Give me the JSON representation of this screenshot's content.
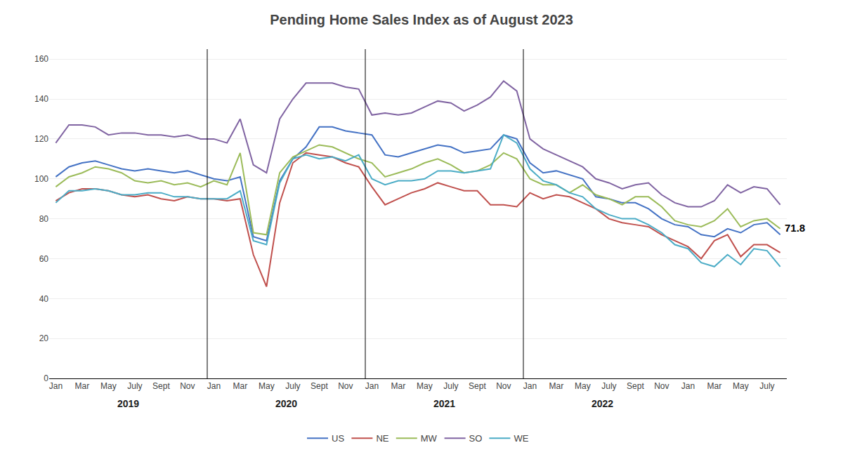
{
  "chart_data": {
    "type": "line",
    "title": "Pending Home Sales Index as of August 2023",
    "categories": [
      "Jan",
      null,
      "Mar",
      null,
      "May",
      null,
      "July",
      null,
      "Sept",
      null,
      "Nov",
      null,
      "Jan",
      null,
      "Mar",
      null,
      "May",
      null,
      "July",
      null,
      "Sept",
      null,
      "Nov",
      null,
      "Jan",
      null,
      "Mar",
      null,
      "May",
      null,
      "July",
      null,
      "Sept",
      null,
      "Nov",
      null,
      "Jan",
      null,
      "Mar",
      null,
      "May",
      null,
      "July",
      null,
      "Sept",
      null,
      "Nov",
      null,
      "Jan",
      null,
      "Mar",
      null,
      "May",
      null,
      "July",
      null
    ],
    "series": [
      {
        "name": "US",
        "color": "#4472C4",
        "values": [
          101,
          106,
          108,
          109,
          107,
          105,
          104,
          105,
          104,
          103,
          104,
          102,
          100,
          99,
          101,
          71,
          69,
          99,
          110,
          116,
          126,
          126,
          124,
          123,
          122,
          112,
          111,
          113,
          115,
          117,
          116,
          113,
          114,
          115,
          122,
          120,
          108,
          103,
          104,
          102,
          100,
          91,
          90,
          88,
          88,
          85,
          80,
          77,
          76,
          72,
          71,
          75,
          73,
          77,
          78,
          72
        ]
      },
      {
        "name": "NE",
        "color": "#C0504D",
        "values": [
          89,
          93,
          95,
          95,
          94,
          92,
          91,
          92,
          90,
          89,
          91,
          90,
          90,
          89,
          90,
          62,
          46,
          88,
          108,
          113,
          112,
          111,
          108,
          106,
          96,
          87,
          90,
          93,
          95,
          98,
          96,
          94,
          94,
          87,
          87,
          86,
          93,
          90,
          92,
          91,
          88,
          85,
          80,
          78,
          77,
          76,
          72,
          69,
          66,
          60,
          69,
          72,
          61,
          67,
          67,
          63
        ]
      },
      {
        "name": "MW",
        "color": "#9BBB59",
        "values": [
          96,
          101,
          103,
          106,
          105,
          103,
          99,
          98,
          99,
          97,
          98,
          96,
          99,
          97,
          113,
          73,
          72,
          103,
          111,
          114,
          117,
          116,
          113,
          110,
          108,
          101,
          103,
          105,
          108,
          110,
          107,
          103,
          104,
          107,
          113,
          110,
          100,
          97,
          97,
          93,
          97,
          92,
          90,
          87,
          91,
          91,
          86,
          79,
          77,
          76,
          79,
          85,
          76,
          79,
          80,
          75
        ]
      },
      {
        "name": "SO",
        "color": "#8064A2",
        "values": [
          118,
          127,
          127,
          126,
          122,
          123,
          123,
          122,
          122,
          121,
          122,
          120,
          120,
          118,
          130,
          107,
          103,
          130,
          140,
          148,
          148,
          148,
          146,
          145,
          132,
          133,
          132,
          133,
          136,
          139,
          138,
          134,
          137,
          141,
          149,
          144,
          120,
          115,
          112,
          109,
          106,
          100,
          98,
          95,
          97,
          98,
          92,
          88,
          86,
          86,
          89,
          97,
          93,
          96,
          95,
          87
        ]
      },
      {
        "name": "WE",
        "color": "#4BACC6",
        "values": [
          88,
          94,
          94,
          95,
          94,
          92,
          92,
          93,
          93,
          91,
          91,
          90,
          90,
          90,
          94,
          69,
          67,
          98,
          110,
          112,
          110,
          111,
          109,
          112,
          100,
          97,
          99,
          99,
          100,
          104,
          104,
          103,
          104,
          105,
          122,
          118,
          105,
          99,
          97,
          93,
          91,
          85,
          82,
          80,
          80,
          77,
          73,
          67,
          65,
          58,
          56,
          62,
          57,
          65,
          64,
          56
        ]
      }
    ],
    "annotations": [
      {
        "text": "2019",
        "x": 5.5
      },
      {
        "text": "2020",
        "x": 17.5
      },
      {
        "text": "2021",
        "x": 29.5
      },
      {
        "text": "2022",
        "x": 41.5
      },
      {
        "text": "71.8",
        "x": 55,
        "y": 72
      }
    ],
    "ylim": [
      0,
      165
    ],
    "yticks": [
      0,
      20,
      40,
      60,
      80,
      100,
      120,
      140,
      160
    ],
    "grid": true,
    "legend": "bottom"
  }
}
